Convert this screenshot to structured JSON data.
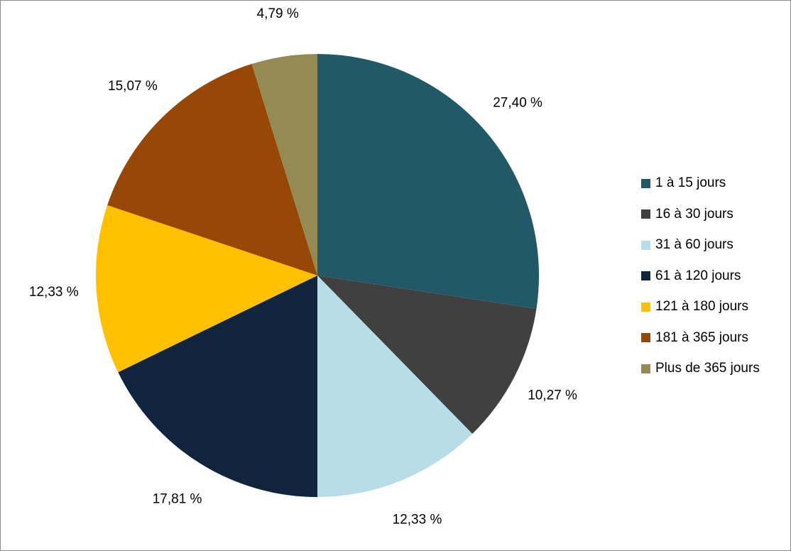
{
  "chart_data": {
    "type": "pie",
    "title": "",
    "categories": [
      "1 à 15 jours",
      "16 à 30 jours",
      "31 à 60 jours",
      "61 à 120 jours",
      "121 à 180 jours",
      "181 à 365 jours",
      "Plus de 365 jours"
    ],
    "values": [
      27.4,
      10.27,
      12.33,
      17.81,
      12.33,
      15.07,
      4.79
    ],
    "data_labels": [
      "27,40 %",
      "10,27 %",
      "12,33 %",
      "17,81 %",
      "12,33 %",
      "15,07 %",
      "4,79 %"
    ],
    "colors": [
      "#215968",
      "#404040",
      "#B7DEE8",
      "#10243E",
      "#FFC000",
      "#974706",
      "#948A54"
    ],
    "start": "12 o'clock",
    "direction": "clockwise",
    "legend_position": "right"
  }
}
